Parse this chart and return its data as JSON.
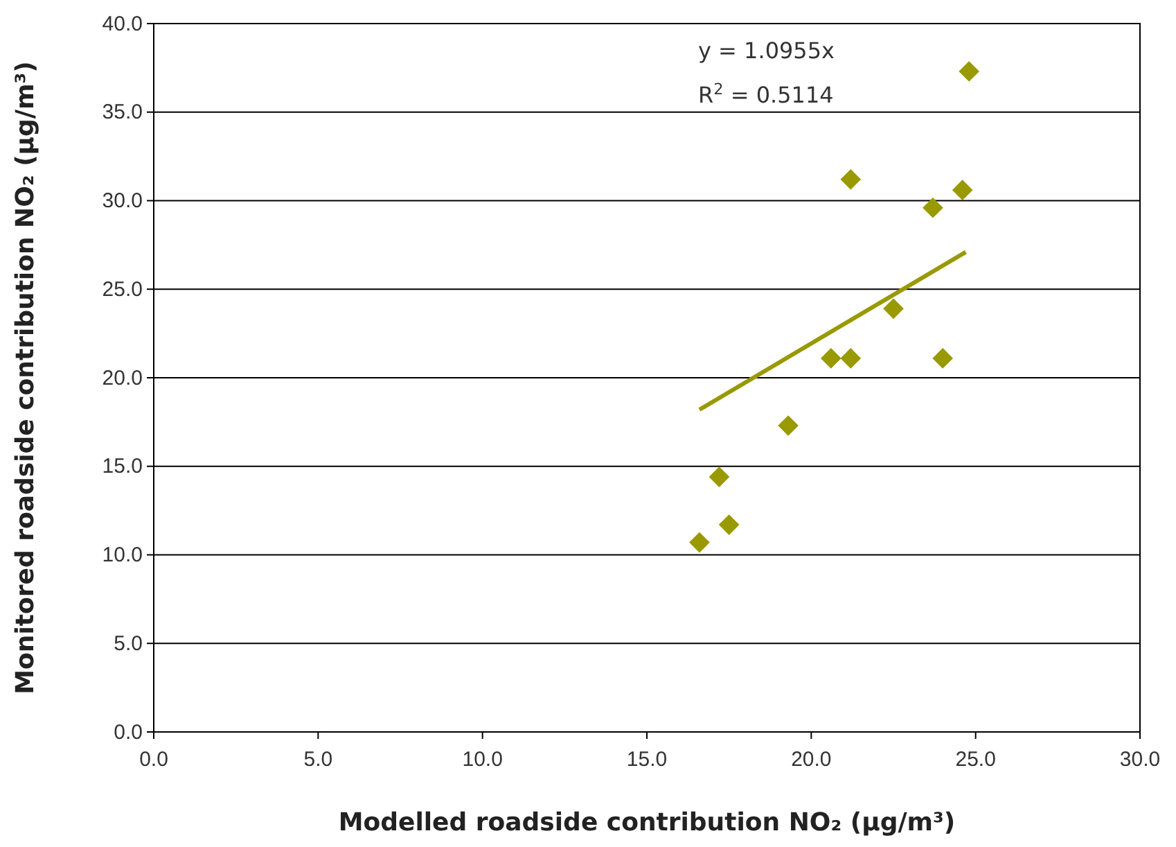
{
  "chart_data": {
    "type": "scatter",
    "xlabel": "Modelled roadside contribution NO₂ (μg/m³)",
    "ylabel": "Monitored roadside contribution NO₂ (μg/m³)",
    "xlim": [
      0,
      30
    ],
    "ylim": [
      0,
      40
    ],
    "xticks": [
      {
        "value": 0,
        "label": "0.0"
      },
      {
        "value": 5,
        "label": "5.0"
      },
      {
        "value": 10,
        "label": "10.0"
      },
      {
        "value": 15,
        "label": "15.0"
      },
      {
        "value": 20,
        "label": "20.0"
      },
      {
        "value": 25,
        "label": "25.0"
      },
      {
        "value": 30,
        "label": "30.0"
      }
    ],
    "yticks": [
      {
        "value": 0,
        "label": "0.0"
      },
      {
        "value": 5,
        "label": "5.0"
      },
      {
        "value": 10,
        "label": "10.0"
      },
      {
        "value": 15,
        "label": "15.0"
      },
      {
        "value": 20,
        "label": "20.0"
      },
      {
        "value": 25,
        "label": "25.0"
      },
      {
        "value": 30,
        "label": "30.0"
      },
      {
        "value": 35,
        "label": "35.0"
      },
      {
        "value": 40,
        "label": "40.0"
      }
    ],
    "grid": "y",
    "series": [
      {
        "marker": "diamond",
        "color": "#999900",
        "x": [
          16.6,
          17.2,
          17.5,
          19.3,
          20.6,
          21.2,
          21.2,
          22.5,
          23.7,
          24.0,
          24.6,
          24.8
        ],
        "values": [
          10.7,
          14.4,
          11.7,
          17.3,
          21.1,
          21.1,
          31.2,
          23.9,
          29.6,
          21.1,
          30.6,
          37.3
        ]
      },
      {
        "type": "line",
        "color": "#999900",
        "x": [
          16.6,
          24.7
        ],
        "values": [
          18.2,
          27.1
        ]
      }
    ],
    "annotations": [
      "y = 1.0955x",
      "R$^{2}$ = 0.5114"
    ]
  }
}
